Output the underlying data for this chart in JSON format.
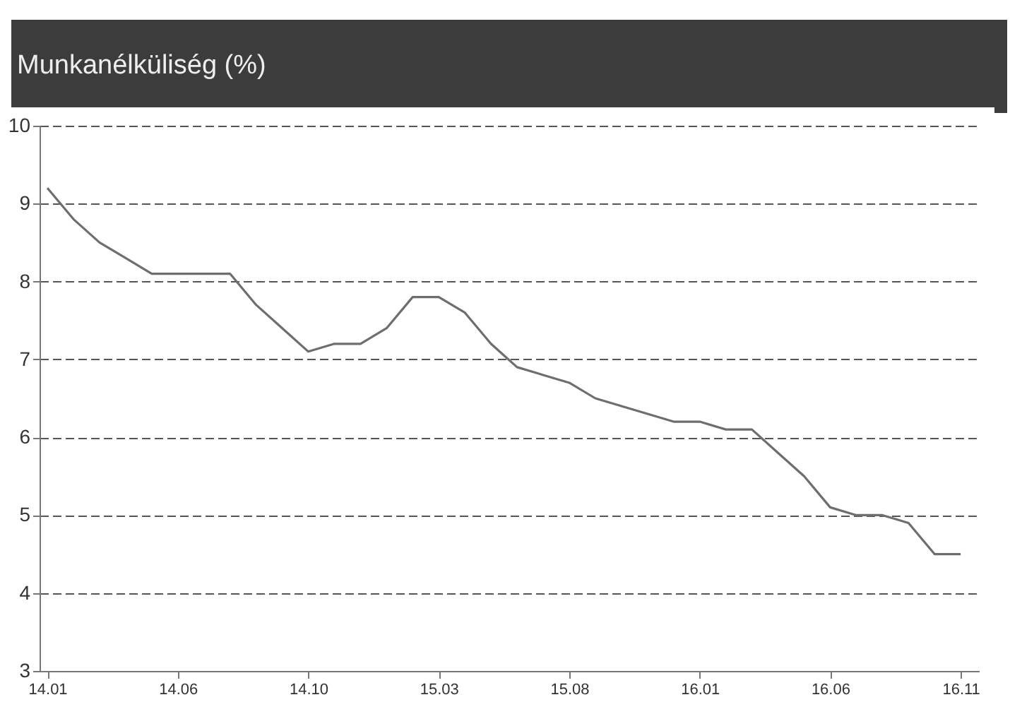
{
  "chart_data": {
    "type": "line",
    "title": "Munkanélküliség (%)",
    "categories": [
      "14.01",
      null,
      null,
      null,
      null,
      "14.06",
      null,
      null,
      null,
      null,
      "14.10",
      null,
      null,
      null,
      null,
      "15.03",
      null,
      null,
      null,
      null,
      "15.08",
      null,
      null,
      null,
      null,
      "16.01",
      null,
      null,
      null,
      null,
      "16.06",
      null,
      null,
      null,
      null,
      "16.11"
    ],
    "series": [
      {
        "color": "#6e6e6e",
        "values": [
          9.2,
          8.8,
          8.5,
          8.3,
          8.1,
          8.1,
          8.1,
          8.1,
          7.7,
          7.4,
          7.1,
          7.2,
          7.2,
          7.4,
          7.8,
          7.8,
          7.6,
          7.2,
          6.9,
          6.8,
          6.7,
          6.5,
          6.4,
          6.3,
          6.2,
          6.2,
          6.1,
          6.1,
          5.8,
          5.5,
          5.1,
          5.0,
          5.0,
          4.9,
          4.5,
          4.5
        ]
      }
    ],
    "ylim": [
      3,
      10
    ],
    "yticks": [
      3,
      4,
      5,
      6,
      7,
      8,
      9,
      10
    ],
    "grid": "y",
    "line_style": "solid",
    "marker": "none",
    "legend": false
  }
}
